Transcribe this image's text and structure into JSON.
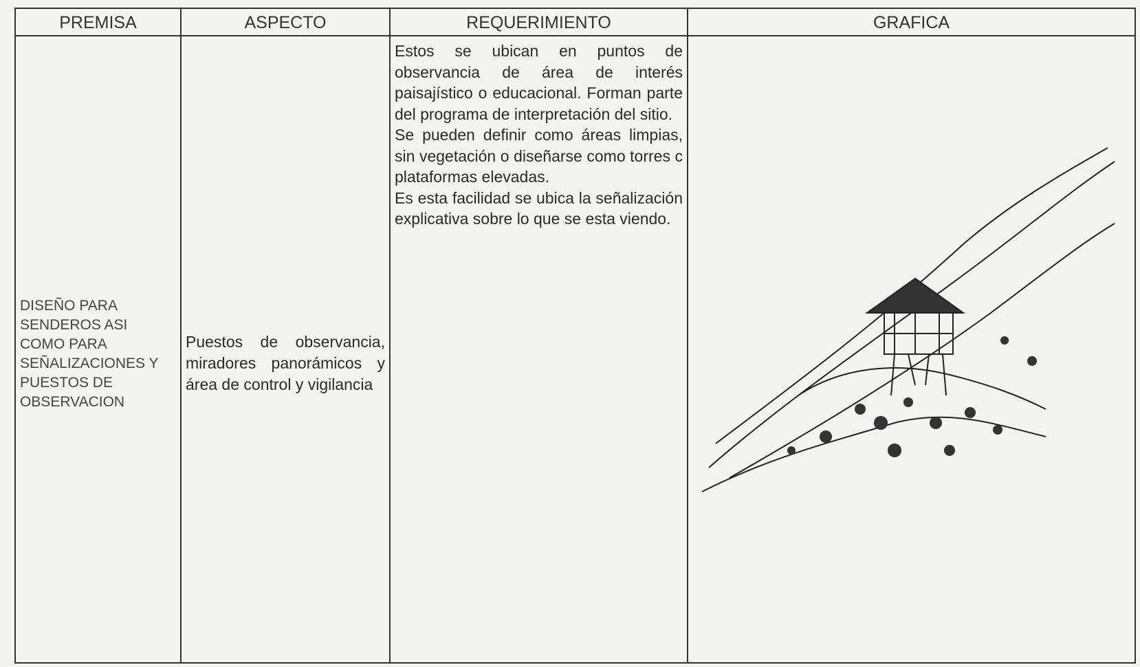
{
  "table": {
    "headers": [
      "PREMISA",
      "ASPECTO",
      "REQUERIMIENTO",
      "GRAFICA"
    ],
    "rows": [
      [
        "DISEÑO PARA SENDEROS ASI COMO PARA SEÑALIZACIONES Y PUESTOS DE OBSERVACION",
        "Puestos de observancia, miradores panorámicos y área de control y vigilancia",
        [
          "Estos se ubican en puntos de observancia de área de interés paisajístico o educacional. Forman parte del programa de interpretación del sitio.",
          "Se pueden definir como áreas limpias, sin vegetación o diseñarse como torres c plataformas elevadas.",
          "Es esta facilidad se ubica la señalización explicativa sobre lo que se esta viendo."
        ]
      ]
    ]
  }
}
